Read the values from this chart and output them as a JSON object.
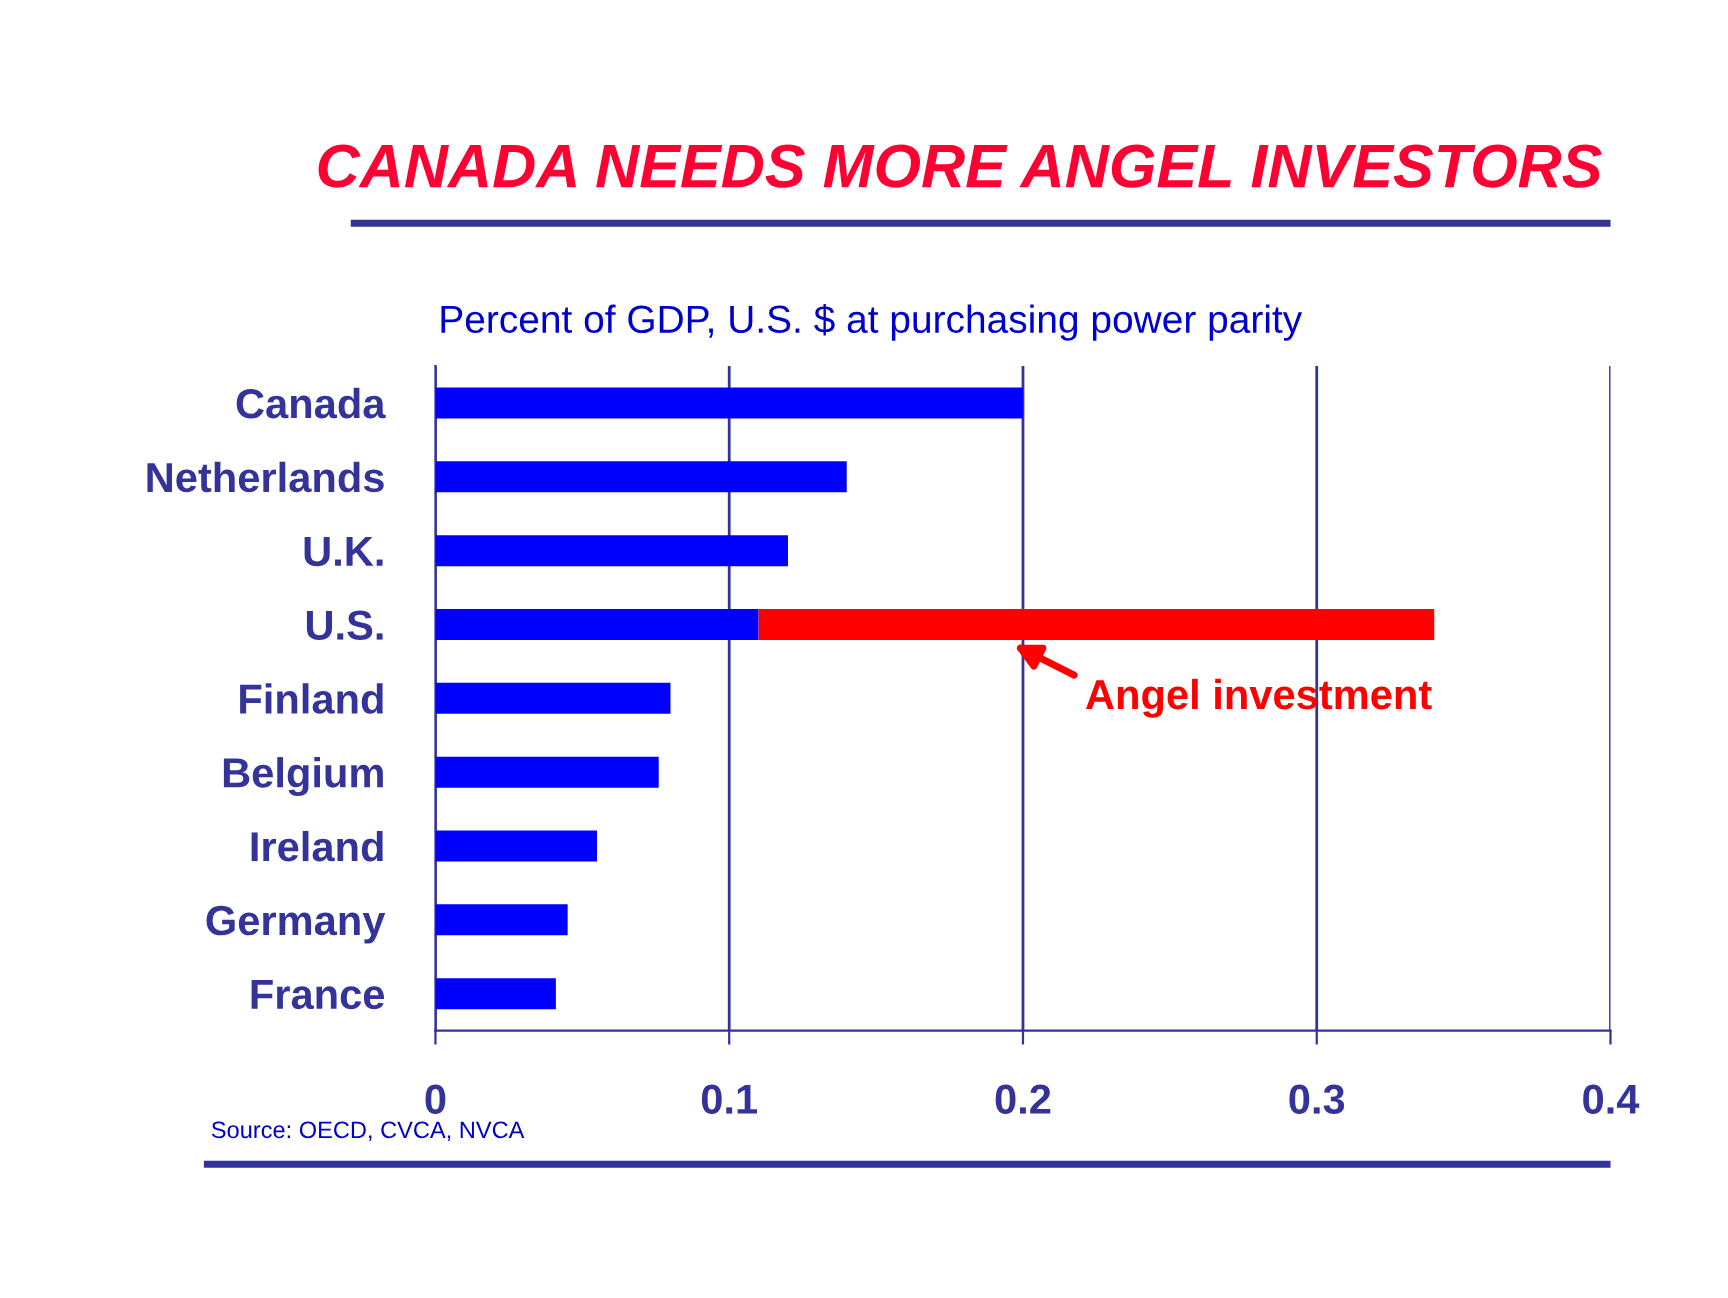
{
  "chart_data": {
    "type": "bar",
    "orientation": "horizontal",
    "stacked": true,
    "title": "CANADA NEEDS MORE ANGEL INVESTORS",
    "subtitle": "Percent of GDP, U.S. $ at purchasing power parity",
    "categories": [
      "Canada",
      "Netherlands",
      "U.K.",
      "U.S.",
      "Finland",
      "Belgium",
      "Ireland",
      "Germany",
      "France"
    ],
    "series": [
      {
        "color": "#0000ff",
        "values": [
          0.2,
          0.14,
          0.12,
          0.11,
          0.08,
          0.076,
          0.055,
          0.045,
          0.041
        ]
      },
      {
        "color": "#ff0000",
        "values": [
          null,
          null,
          null,
          0.23,
          null,
          null,
          null,
          null,
          null
        ]
      }
    ],
    "xlim": [
      0,
      0.4
    ],
    "xticks": [
      0,
      0.1,
      0.2,
      0.3,
      0.4
    ],
    "grid": "x",
    "legend": false,
    "annotations": [
      "Angel investment",
      "Source: OECD, CVCA, NVCA"
    ]
  }
}
